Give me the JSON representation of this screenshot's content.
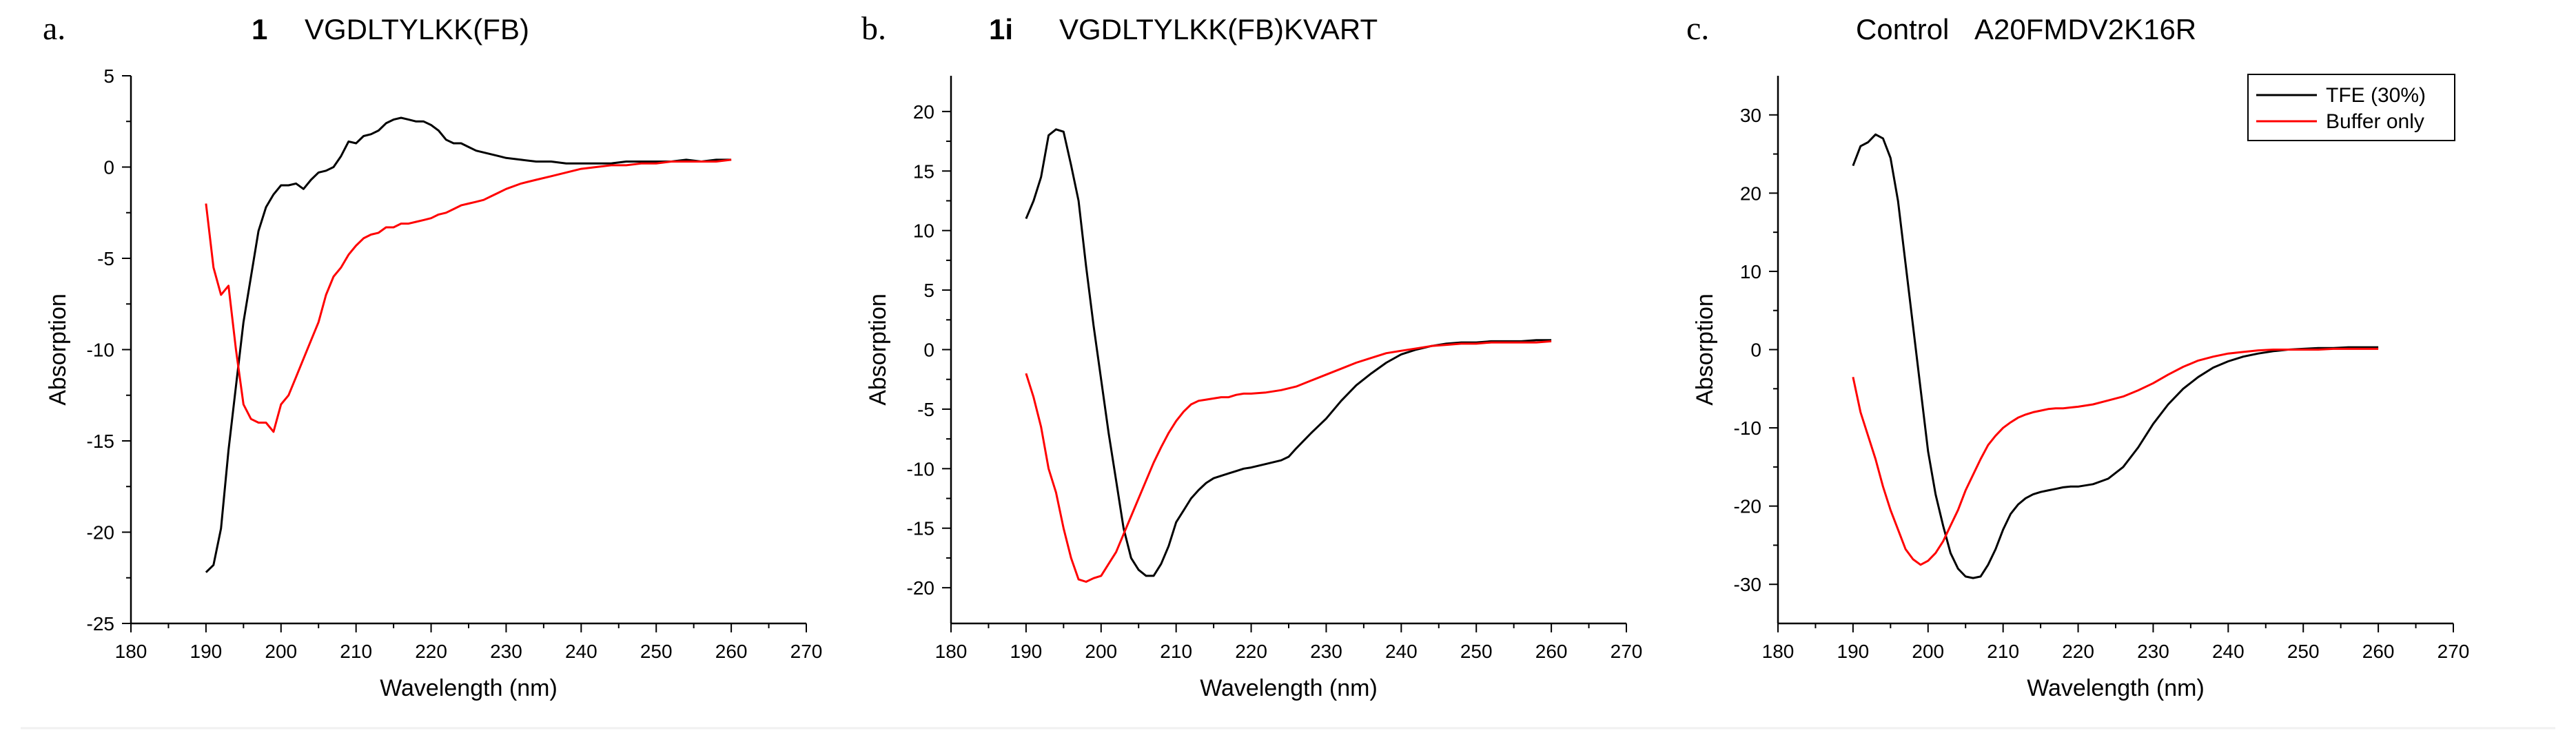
{
  "chart_data": [
    {
      "type": "line",
      "panel_letter": "a.",
      "title_number": "1",
      "title_text": "VGDLTYLKK(FB)",
      "xlabel": "Wavelength (nm)",
      "ylabel": "Absorption",
      "xlim": [
        180,
        270
      ],
      "ylim": [
        -25,
        5
      ],
      "xticks": [
        180,
        190,
        200,
        210,
        220,
        230,
        240,
        250,
        260,
        270
      ],
      "yticks": [
        -25,
        -20,
        -15,
        -10,
        -5,
        0,
        5
      ],
      "grid": false,
      "series": [
        {
          "name": "TFE (30%)",
          "color": "#000000",
          "x": [
            190,
            191,
            192,
            193,
            194,
            195,
            196,
            197,
            198,
            199,
            200,
            201,
            202,
            203,
            204,
            205,
            206,
            207,
            208,
            209,
            210,
            211,
            212,
            213,
            214,
            215,
            216,
            217,
            218,
            219,
            220,
            221,
            222,
            223,
            224,
            225,
            226,
            227,
            228,
            229,
            230,
            232,
            234,
            236,
            238,
            240,
            242,
            244,
            246,
            248,
            250,
            252,
            254,
            256,
            258,
            260
          ],
          "y": [
            -22.2,
            -21.8,
            -19.8,
            -15.5,
            -12,
            -8.5,
            -6,
            -3.5,
            -2.2,
            -1.5,
            -1.0,
            -1.0,
            -0.9,
            -1.2,
            -0.7,
            -0.3,
            -0.2,
            0.0,
            0.6,
            1.4,
            1.3,
            1.7,
            1.8,
            2.0,
            2.4,
            2.6,
            2.7,
            2.6,
            2.5,
            2.5,
            2.3,
            2.0,
            1.5,
            1.3,
            1.3,
            1.1,
            0.9,
            0.8,
            0.7,
            0.6,
            0.5,
            0.4,
            0.3,
            0.3,
            0.2,
            0.2,
            0.2,
            0.2,
            0.3,
            0.3,
            0.3,
            0.3,
            0.4,
            0.3,
            0.4,
            0.4
          ]
        },
        {
          "name": "Buffer only",
          "color": "#ff0000",
          "x": [
            190,
            191,
            192,
            193,
            194,
            195,
            196,
            197,
            198,
            199,
            200,
            201,
            202,
            203,
            204,
            205,
            206,
            207,
            208,
            209,
            210,
            211,
            212,
            213,
            214,
            215,
            216,
            217,
            218,
            219,
            220,
            221,
            222,
            223,
            224,
            225,
            226,
            227,
            228,
            229,
            230,
            232,
            234,
            236,
            238,
            240,
            242,
            244,
            246,
            248,
            250,
            252,
            254,
            256,
            258,
            260
          ],
          "y": [
            -2.0,
            -5.5,
            -7.0,
            -6.5,
            -10.0,
            -13.0,
            -13.8,
            -14.0,
            -14.0,
            -14.5,
            -13.0,
            -12.5,
            -11.5,
            -10.5,
            -9.5,
            -8.5,
            -7.0,
            -6.0,
            -5.5,
            -4.8,
            -4.3,
            -3.9,
            -3.7,
            -3.6,
            -3.3,
            -3.3,
            -3.1,
            -3.1,
            -3.0,
            -2.9,
            -2.8,
            -2.6,
            -2.5,
            -2.3,
            -2.1,
            -2.0,
            -1.9,
            -1.8,
            -1.6,
            -1.4,
            -1.2,
            -0.9,
            -0.7,
            -0.5,
            -0.3,
            -0.1,
            0.0,
            0.1,
            0.1,
            0.2,
            0.2,
            0.3,
            0.3,
            0.3,
            0.3,
            0.4
          ]
        }
      ]
    },
    {
      "type": "line",
      "panel_letter": "b.",
      "title_number": "1i",
      "title_text": "VGDLTYLKK(FB)KVART",
      "xlabel": "Wavelength (nm)",
      "ylabel": "Absorption",
      "xlim": [
        180,
        270
      ],
      "ylim": [
        -23,
        23
      ],
      "xticks": [
        180,
        190,
        200,
        210,
        220,
        230,
        240,
        250,
        260,
        270
      ],
      "yticks": [
        -20,
        -15,
        -10,
        -5,
        0,
        5,
        10,
        15,
        20
      ],
      "grid": false,
      "series": [
        {
          "name": "TFE (30%)",
          "color": "#000000",
          "x": [
            190,
            191,
            192,
            193,
            194,
            195,
            196,
            197,
            198,
            199,
            200,
            201,
            202,
            203,
            204,
            205,
            206,
            207,
            208,
            209,
            210,
            211,
            212,
            213,
            214,
            215,
            216,
            217,
            218,
            219,
            220,
            222,
            224,
            225,
            226,
            228,
            230,
            232,
            234,
            236,
            238,
            240,
            242,
            244,
            246,
            248,
            250,
            252,
            254,
            256,
            258,
            260
          ],
          "y": [
            11.0,
            12.5,
            14.5,
            18.0,
            18.5,
            18.3,
            15.5,
            12.5,
            7.0,
            2.0,
            -2.5,
            -7.0,
            -11.0,
            -15.0,
            -17.5,
            -18.5,
            -19.0,
            -19.0,
            -18.0,
            -16.5,
            -14.5,
            -13.5,
            -12.5,
            -11.8,
            -11.2,
            -10.8,
            -10.6,
            -10.4,
            -10.2,
            -10.0,
            -9.9,
            -9.6,
            -9.3,
            -9.0,
            -8.3,
            -7.0,
            -5.8,
            -4.3,
            -3.0,
            -2.0,
            -1.1,
            -0.4,
            0.0,
            0.3,
            0.5,
            0.6,
            0.6,
            0.7,
            0.7,
            0.7,
            0.8,
            0.8
          ]
        },
        {
          "name": "Buffer only",
          "color": "#ff0000",
          "x": [
            190,
            191,
            192,
            193,
            194,
            195,
            196,
            197,
            198,
            199,
            200,
            201,
            202,
            203,
            204,
            205,
            206,
            207,
            208,
            209,
            210,
            211,
            212,
            213,
            214,
            215,
            216,
            217,
            218,
            219,
            220,
            222,
            224,
            226,
            228,
            230,
            232,
            234,
            236,
            238,
            240,
            242,
            244,
            246,
            248,
            250,
            252,
            254,
            256,
            258,
            260
          ],
          "y": [
            -2.0,
            -4.0,
            -6.5,
            -10.0,
            -12.0,
            -15.0,
            -17.5,
            -19.3,
            -19.5,
            -19.2,
            -19.0,
            -18.0,
            -17.0,
            -15.5,
            -14.0,
            -12.5,
            -11.0,
            -9.5,
            -8.2,
            -7.0,
            -6.0,
            -5.2,
            -4.6,
            -4.3,
            -4.2,
            -4.1,
            -4.0,
            -4.0,
            -3.8,
            -3.7,
            -3.7,
            -3.6,
            -3.4,
            -3.1,
            -2.6,
            -2.1,
            -1.6,
            -1.1,
            -0.7,
            -0.3,
            -0.1,
            0.1,
            0.3,
            0.4,
            0.5,
            0.5,
            0.6,
            0.6,
            0.6,
            0.6,
            0.7
          ]
        }
      ]
    },
    {
      "type": "line",
      "panel_letter": "c.",
      "title_number": "Control",
      "title_text": "A20FMDV2K16R",
      "xlabel": "Wavelength (nm)",
      "ylabel": "Absorption",
      "xlim": [
        180,
        270
      ],
      "ylim": [
        -35,
        35
      ],
      "xticks": [
        180,
        190,
        200,
        210,
        220,
        230,
        240,
        250,
        260,
        270
      ],
      "yticks": [
        -30,
        -20,
        -10,
        0,
        10,
        20,
        30
      ],
      "grid": false,
      "legend_position": "top-right",
      "legend": [
        "TFE (30%)",
        "Buffer only"
      ],
      "series": [
        {
          "name": "TFE (30%)",
          "color": "#000000",
          "x": [
            190,
            191,
            192,
            193,
            194,
            195,
            196,
            197,
            198,
            199,
            200,
            201,
            202,
            203,
            204,
            205,
            206,
            207,
            208,
            209,
            210,
            211,
            212,
            213,
            214,
            215,
            216,
            217,
            218,
            219,
            220,
            222,
            224,
            226,
            228,
            230,
            232,
            234,
            236,
            238,
            240,
            242,
            244,
            246,
            248,
            250,
            252,
            254,
            256,
            258,
            260
          ],
          "y": [
            23.5,
            26.0,
            26.5,
            27.5,
            27.0,
            24.5,
            19.0,
            11.0,
            3.0,
            -5.0,
            -13.0,
            -18.5,
            -22.5,
            -26.0,
            -28.0,
            -29.0,
            -29.2,
            -29.0,
            -27.5,
            -25.5,
            -23.0,
            -21.0,
            -19.8,
            -19.0,
            -18.5,
            -18.2,
            -18.0,
            -17.8,
            -17.6,
            -17.5,
            -17.5,
            -17.2,
            -16.5,
            -15.0,
            -12.5,
            -9.5,
            -7.0,
            -5.0,
            -3.5,
            -2.3,
            -1.5,
            -0.9,
            -0.5,
            -0.2,
            0.0,
            0.1,
            0.2,
            0.2,
            0.3,
            0.3,
            0.3
          ]
        },
        {
          "name": "Buffer only",
          "color": "#ff0000",
          "x": [
            190,
            191,
            192,
            193,
            194,
            195,
            196,
            197,
            198,
            199,
            200,
            201,
            202,
            203,
            204,
            205,
            206,
            207,
            208,
            209,
            210,
            211,
            212,
            213,
            214,
            215,
            216,
            217,
            218,
            219,
            220,
            222,
            224,
            226,
            228,
            230,
            232,
            234,
            236,
            238,
            240,
            242,
            244,
            246,
            248,
            250,
            252,
            254,
            256,
            258,
            260
          ],
          "y": [
            -3.5,
            -8.0,
            -11.0,
            -14.0,
            -17.5,
            -20.5,
            -23.0,
            -25.5,
            -26.8,
            -27.5,
            -27.0,
            -26.0,
            -24.5,
            -22.5,
            -20.5,
            -18.0,
            -16.0,
            -14.0,
            -12.2,
            -11.0,
            -10.0,
            -9.3,
            -8.7,
            -8.3,
            -8.0,
            -7.8,
            -7.6,
            -7.5,
            -7.5,
            -7.4,
            -7.3,
            -7.0,
            -6.5,
            -6.0,
            -5.2,
            -4.3,
            -3.2,
            -2.2,
            -1.4,
            -0.9,
            -0.5,
            -0.3,
            -0.1,
            0.0,
            0.0,
            0.0,
            0.0,
            0.1,
            0.1,
            0.1,
            0.1
          ]
        }
      ]
    }
  ]
}
